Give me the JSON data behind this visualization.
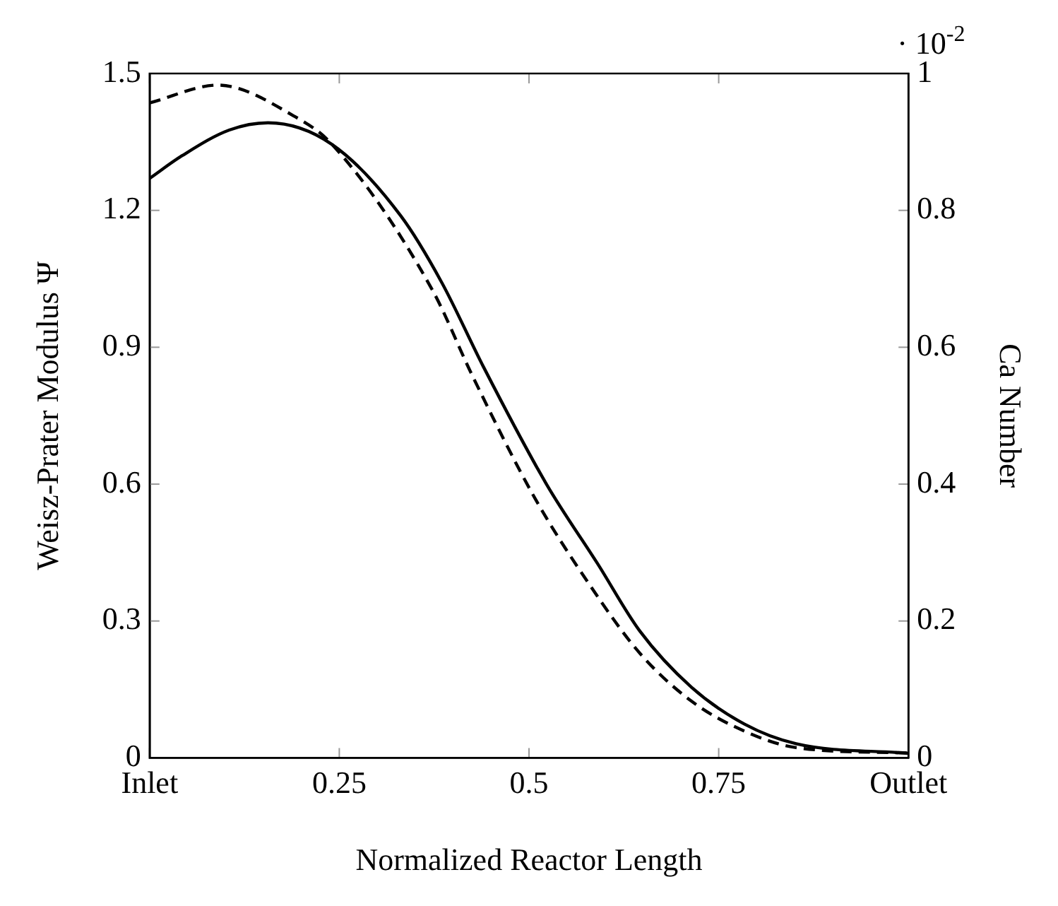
{
  "chart_data": {
    "type": "line",
    "xlabel": "Normalized Reactor Length",
    "ylabel": "Weisz-Prater Modulus Ψ",
    "y2label": "Ca Number",
    "annotations": [
      "· 10$^{-2}$"
    ],
    "xlim": [
      0,
      1
    ],
    "xticks": [
      {
        "value": 0,
        "label": "Inlet"
      },
      0.25,
      0.5,
      0.75,
      {
        "value": 1,
        "label": "Outlet"
      }
    ],
    "ylim": [
      0,
      1.5
    ],
    "yticks": [
      0,
      0.3,
      0.6,
      0.9,
      1.2,
      1.5
    ],
    "y2lim": [
      0,
      1
    ],
    "y2ticks": [
      0,
      0.2,
      0.4,
      0.6,
      0.8,
      1
    ],
    "grid": false,
    "legend": false,
    "marker": "none",
    "series": [
      {
        "color": "#000000",
        "line_style": "solid",
        "x": [
          0,
          0.043,
          0.105,
          0.156,
          0.24,
          0.331,
          0.385,
          0.44,
          0.523,
          0.591,
          0.646,
          0.714,
          0.784,
          0.852,
          1
        ],
        "values": [
          1.27,
          1.32,
          1.376,
          1.392,
          1.345,
          1.188,
          1.042,
          0.857,
          0.6,
          0.424,
          0.278,
          0.155,
          0.074,
          0.031,
          0.01
        ]
      },
      {
        "color": "#000000",
        "line_style": "dashed",
        "axis": "y2",
        "x": [
          0,
          0.09,
          0.19,
          0.24,
          0.372,
          0.426,
          0.508,
          0.578,
          0.646,
          0.714,
          0.784,
          0.852,
          1
        ],
        "values": [
          0.957,
          0.983,
          0.938,
          0.897,
          0.685,
          0.557,
          0.379,
          0.256,
          0.153,
          0.083,
          0.039,
          0.015,
          0.007
        ]
      }
    ]
  }
}
